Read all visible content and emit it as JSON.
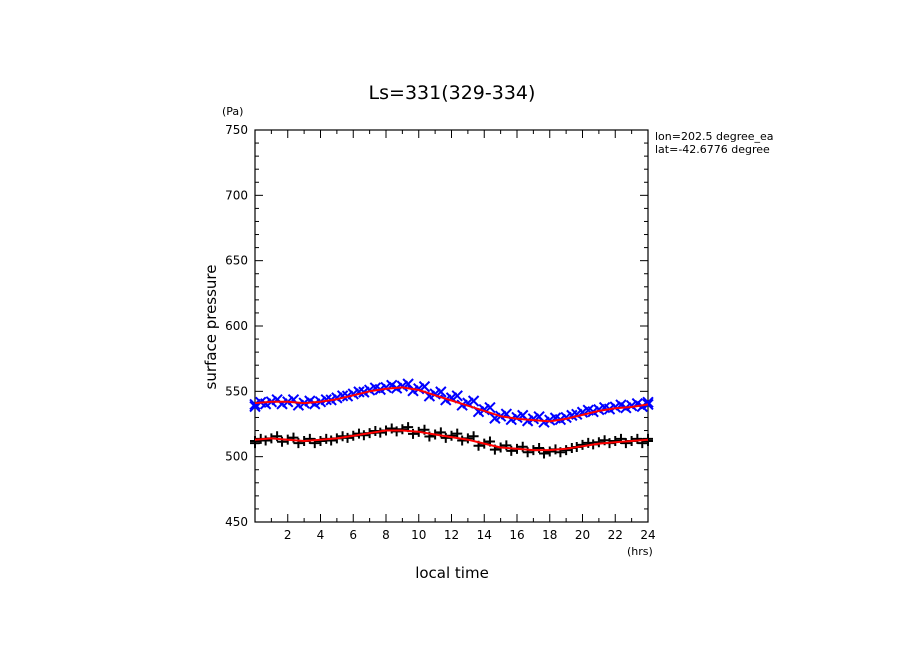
{
  "chart_data": {
    "type": "scatter",
    "title": "Ls=331(329-334)",
    "xlabel": "local time",
    "ylabel": "surface pressure",
    "x_unit": "(hrs)",
    "y_unit": "(Pa)",
    "xlim": [
      0,
      24
    ],
    "ylim": [
      450,
      750
    ],
    "x_ticks": [
      2,
      4,
      6,
      8,
      10,
      12,
      14,
      16,
      18,
      20,
      22,
      24
    ],
    "y_ticks": [
      450,
      500,
      550,
      600,
      650,
      700,
      750
    ],
    "annotations": [
      "lon=202.5 degree_ea",
      "lat=-42.6776 degree"
    ],
    "grid": false,
    "series": [
      {
        "marker": "x",
        "color": "#0000ff",
        "x": [
          0,
          1,
          2,
          3,
          4,
          5,
          6,
          7,
          8,
          9,
          10,
          11,
          12,
          13,
          14,
          15,
          16,
          17,
          18,
          19,
          20,
          21,
          22,
          23,
          24
        ],
        "y": [
          540,
          542,
          542,
          541,
          542,
          545,
          548,
          551,
          553,
          554,
          552,
          548,
          545,
          541,
          536,
          531,
          530,
          529,
          528,
          530,
          534,
          536,
          538,
          539,
          540
        ]
      },
      {
        "marker": "+",
        "color": "#000000",
        "x": [
          0,
          1,
          2,
          3,
          4,
          5,
          6,
          7,
          8,
          9,
          10,
          11,
          12,
          13,
          14,
          15,
          16,
          17,
          18,
          19,
          20,
          21,
          22,
          23,
          24
        ],
        "y": [
          512,
          514,
          513,
          512,
          512,
          514,
          516,
          518,
          520,
          521,
          519,
          517,
          516,
          514,
          510,
          507,
          506,
          505,
          504,
          505,
          509,
          511,
          512,
          512,
          512
        ]
      },
      {
        "type": "line",
        "color": "#ff0000",
        "x": [
          0,
          1,
          2,
          3,
          4,
          5,
          6,
          7,
          8,
          9,
          10,
          11,
          12,
          13,
          14,
          15,
          16,
          17,
          18,
          19,
          20,
          21,
          22,
          23,
          24
        ],
        "y": [
          541,
          542,
          542,
          541,
          542,
          544,
          547,
          550,
          552,
          553,
          551,
          547,
          543,
          539,
          535,
          531,
          529,
          528,
          527,
          529,
          532,
          535,
          537,
          538,
          540
        ]
      },
      {
        "type": "line",
        "color": "#ff0000",
        "x": [
          0,
          1,
          2,
          3,
          4,
          5,
          6,
          7,
          8,
          9,
          10,
          11,
          12,
          13,
          14,
          15,
          16,
          17,
          18,
          19,
          20,
          21,
          22,
          23,
          24
        ],
        "y": [
          513,
          514,
          513,
          512,
          513,
          514,
          516,
          518,
          520,
          520,
          519,
          517,
          515,
          513,
          510,
          507,
          506,
          505,
          505,
          506,
          508,
          510,
          511,
          512,
          513
        ]
      }
    ]
  }
}
